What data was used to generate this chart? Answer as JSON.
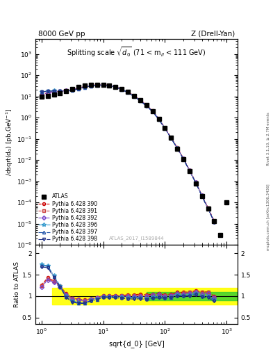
{
  "title_left": "8000 GeV pp",
  "title_right": "Z (Drell-Yan)",
  "plot_title": "Splitting scale $\\sqrt{\\overline{d_0}}$ (71 < m$_{ll}$ < 111 GeV)",
  "xlabel": "sqrt{d_0} [GeV]",
  "ylabel_main": "d$\\sigma$\n/dsqrt(d$_0$) [pb,GeV$^{-1}$]",
  "ylabel_ratio": "Ratio to ATLAS",
  "watermark": "ATLAS_2017_I1589844",
  "rivet_text": "Rivet 3.1.10, ≥ 2.7M events",
  "arxiv_text": "mcplots.cern.ch [arXiv:1306.3436]",
  "background_color": "#ffffff",
  "main_ylim": [
    1e-06,
    5000.0
  ],
  "ratio_ylim": [
    0.35,
    2.2
  ],
  "ratio_yticks": [
    0.5,
    1.0,
    1.5,
    2.0
  ],
  "xlim": [
    0.8,
    1500
  ],
  "green_band": [
    0.9,
    1.1
  ],
  "yellow_band": [
    0.8,
    1.2
  ],
  "green_xstart": 50.0,
  "yellow_xstart": 1.5,
  "series": {
    "ATLAS": {
      "color": "#000000",
      "marker": "s",
      "markersize": 4,
      "linestyle": "none",
      "label": "ATLAS",
      "x": [
        1.0,
        1.26,
        1.59,
        2.0,
        2.51,
        3.17,
        3.98,
        5.01,
        6.31,
        7.94,
        10.0,
        12.6,
        15.85,
        19.95,
        25.12,
        31.62,
        39.81,
        50.12,
        63.1,
        79.43,
        100.0,
        125.9,
        158.5,
        199.5,
        251.2,
        316.2,
        398.1,
        501.2,
        631.0,
        794.3,
        1000.0
      ],
      "y": [
        9.5,
        10.5,
        12.5,
        14.5,
        18.0,
        22.0,
        27.0,
        32.0,
        35.0,
        36.0,
        35.0,
        33.0,
        28.0,
        22.0,
        16.0,
        10.5,
        6.5,
        3.8,
        2.0,
        0.85,
        0.32,
        0.11,
        0.035,
        0.011,
        0.003,
        0.0008,
        0.0002,
        5e-05,
        1.3e-05,
        3e-06,
        0.0001
      ]
    },
    "Pythia390": {
      "color": "#cc0000",
      "marker": "o",
      "markersize": 3,
      "linestyle": "--",
      "label": "Pythia 6.428 390",
      "x": [
        1.0,
        1.26,
        1.59,
        2.0,
        2.51,
        3.17,
        3.98,
        5.01,
        6.31,
        7.94,
        10.0,
        12.6,
        15.85,
        19.95,
        25.12,
        31.62,
        39.81,
        50.12,
        63.1,
        79.43,
        100.0,
        125.9,
        158.5,
        199.5,
        251.2,
        316.2,
        398.1,
        501.2,
        631.0
      ],
      "y": [
        12.0,
        15.0,
        17.0,
        18.0,
        19.0,
        21.0,
        25.0,
        29.0,
        33.0,
        35.0,
        35.5,
        33.5,
        28.5,
        22.5,
        16.5,
        10.8,
        6.8,
        3.9,
        2.1,
        0.9,
        0.33,
        0.115,
        0.038,
        0.012,
        0.0033,
        0.0009,
        0.00022,
        5.5e-05,
        1.3e-05
      ],
      "ratio": [
        1.26,
        1.43,
        1.36,
        1.24,
        1.06,
        0.95,
        0.93,
        0.91,
        0.94,
        0.97,
        1.01,
        1.02,
        1.02,
        1.02,
        1.03,
        1.03,
        1.05,
        1.03,
        1.05,
        1.06,
        1.03,
        1.05,
        1.09,
        1.09,
        1.1,
        1.13,
        1.1,
        1.1,
        1.0
      ]
    },
    "Pythia391": {
      "color": "#cc4444",
      "marker": "s",
      "markersize": 3,
      "linestyle": "--",
      "label": "Pythia 6.428 391",
      "x": [
        1.0,
        1.26,
        1.59,
        2.0,
        2.51,
        3.17,
        3.98,
        5.01,
        6.31,
        7.94,
        10.0,
        12.6,
        15.85,
        19.95,
        25.12,
        31.62,
        39.81,
        50.12,
        63.1,
        79.43,
        100.0,
        125.9,
        158.5,
        199.5,
        251.2,
        316.2,
        398.1,
        501.2,
        631.0
      ],
      "y": [
        11.8,
        14.8,
        16.8,
        17.8,
        18.8,
        20.8,
        24.8,
        28.8,
        32.8,
        34.8,
        35.2,
        33.2,
        28.2,
        22.2,
        16.2,
        10.6,
        6.6,
        3.85,
        2.05,
        0.88,
        0.325,
        0.113,
        0.0375,
        0.0118,
        0.00328,
        0.00089,
        0.000218,
        5.45e-05,
        1.28e-05
      ],
      "ratio": [
        1.24,
        1.41,
        1.34,
        1.23,
        1.05,
        0.945,
        0.92,
        0.9,
        0.94,
        0.97,
        1.006,
        1.006,
        1.007,
        1.009,
        1.013,
        1.01,
        1.015,
        1.013,
        1.025,
        1.035,
        1.016,
        1.027,
        1.071,
        1.073,
        1.093,
        1.113,
        1.09,
        1.09,
        0.985
      ]
    },
    "Pythia392": {
      "color": "#7744cc",
      "marker": "D",
      "markersize": 3,
      "linestyle": "--",
      "label": "Pythia 6.428 392",
      "x": [
        1.0,
        1.26,
        1.59,
        2.0,
        2.51,
        3.17,
        3.98,
        5.01,
        6.31,
        7.94,
        10.0,
        12.6,
        15.85,
        19.95,
        25.12,
        31.62,
        39.81,
        50.12,
        63.1,
        79.43,
        100.0,
        125.9,
        158.5,
        199.5,
        251.2,
        316.2,
        398.1,
        501.2,
        631.0
      ],
      "y": [
        11.5,
        14.5,
        16.5,
        17.5,
        18.5,
        20.5,
        24.5,
        28.5,
        32.5,
        34.5,
        35.0,
        33.0,
        28.0,
        22.0,
        16.0,
        10.5,
        6.5,
        3.8,
        2.05,
        0.88,
        0.32,
        0.112,
        0.037,
        0.0115,
        0.0032,
        0.00088,
        0.00021,
        5.3e-05,
        1.25e-05
      ],
      "ratio": [
        1.21,
        1.38,
        1.32,
        1.21,
        1.03,
        0.93,
        0.91,
        0.89,
        0.93,
        0.96,
        1.0,
        1.0,
        1.0,
        1.0,
        1.0,
        1.0,
        1.0,
        1.0,
        1.03,
        1.04,
        1.0,
        1.02,
        1.06,
        1.05,
        1.07,
        1.1,
        1.05,
        1.06,
        0.96
      ]
    },
    "Pythia396": {
      "color": "#3399cc",
      "marker": "*",
      "markersize": 4,
      "linestyle": "-.",
      "label": "Pythia 6.428 396",
      "x": [
        1.0,
        1.26,
        1.59,
        2.0,
        2.51,
        3.17,
        3.98,
        5.01,
        6.31,
        7.94,
        10.0,
        12.6,
        15.85,
        19.95,
        25.12,
        31.62,
        39.81,
        50.12,
        63.1,
        79.43,
        100.0,
        125.9,
        158.5,
        199.5,
        251.2,
        316.2,
        398.1,
        501.2,
        631.0
      ],
      "y": [
        16.5,
        18.0,
        18.5,
        18.0,
        18.0,
        19.5,
        23.0,
        27.0,
        31.5,
        33.5,
        34.5,
        32.5,
        27.5,
        21.5,
        15.5,
        10.2,
        6.3,
        3.6,
        1.95,
        0.84,
        0.31,
        0.108,
        0.036,
        0.0112,
        0.0031,
        0.00085,
        0.0002,
        5e-05,
        1.2e-05
      ],
      "ratio": [
        1.74,
        1.71,
        1.48,
        1.24,
        1.0,
        0.89,
        0.85,
        0.84,
        0.9,
        0.93,
        0.99,
        0.98,
        0.98,
        0.98,
        0.97,
        0.97,
        0.97,
        0.95,
        0.98,
        0.99,
        0.97,
        0.98,
        1.03,
        1.02,
        1.03,
        1.06,
        1.0,
        1.0,
        0.92
      ]
    },
    "Pythia397": {
      "color": "#2255aa",
      "marker": "^",
      "markersize": 3,
      "linestyle": "-.",
      "label": "Pythia 6.428 397",
      "x": [
        1.0,
        1.26,
        1.59,
        2.0,
        2.51,
        3.17,
        3.98,
        5.01,
        6.31,
        7.94,
        10.0,
        12.6,
        15.85,
        19.95,
        25.12,
        31.62,
        39.81,
        50.12,
        63.1,
        79.43,
        100.0,
        125.9,
        158.5,
        199.5,
        251.2,
        316.2,
        398.1,
        501.2,
        631.0
      ],
      "y": [
        16.3,
        17.8,
        18.3,
        17.8,
        17.8,
        19.3,
        22.8,
        26.8,
        31.3,
        33.3,
        34.3,
        32.3,
        27.3,
        21.3,
        15.3,
        10.1,
        6.25,
        3.58,
        1.93,
        0.83,
        0.308,
        0.107,
        0.0358,
        0.0111,
        0.00308,
        0.000845,
        0.000199,
        4.98e-05,
        1.19e-05
      ],
      "ratio": [
        1.71,
        1.7,
        1.46,
        1.23,
        0.99,
        0.878,
        0.844,
        0.838,
        0.894,
        0.925,
        0.98,
        0.976,
        0.975,
        0.968,
        0.956,
        0.962,
        0.962,
        0.942,
        0.965,
        0.976,
        0.963,
        0.973,
        1.023,
        1.009,
        1.027,
        1.056,
        0.995,
        0.996,
        0.915
      ]
    },
    "Pythia398": {
      "color": "#223388",
      "marker": "v",
      "markersize": 3,
      "linestyle": "-.",
      "label": "Pythia 6.428 398",
      "x": [
        1.0,
        1.26,
        1.59,
        2.0,
        2.51,
        3.17,
        3.98,
        5.01,
        6.31,
        7.94,
        10.0,
        12.6,
        15.85,
        19.95,
        25.12,
        31.62,
        39.81,
        50.12,
        63.1,
        79.43,
        100.0,
        125.9,
        158.5,
        199.5,
        251.2,
        316.2,
        398.1,
        501.2,
        631.0
      ],
      "y": [
        16.0,
        17.5,
        18.0,
        17.5,
        17.5,
        19.0,
        22.5,
        26.5,
        31.0,
        33.0,
        34.0,
        32.0,
        27.0,
        21.0,
        15.0,
        9.8,
        6.1,
        3.5,
        1.9,
        0.82,
        0.305,
        0.106,
        0.035,
        0.011,
        0.003,
        0.00082,
        0.000195,
        4.8e-05,
        1.15e-05
      ],
      "ratio": [
        1.68,
        1.67,
        1.44,
        1.21,
        0.97,
        0.86,
        0.83,
        0.83,
        0.89,
        0.92,
        0.97,
        0.97,
        0.96,
        0.95,
        0.94,
        0.93,
        0.94,
        0.92,
        0.95,
        0.96,
        0.95,
        0.96,
        1.0,
        1.0,
        1.0,
        1.03,
        0.98,
        0.96,
        0.88
      ]
    }
  }
}
